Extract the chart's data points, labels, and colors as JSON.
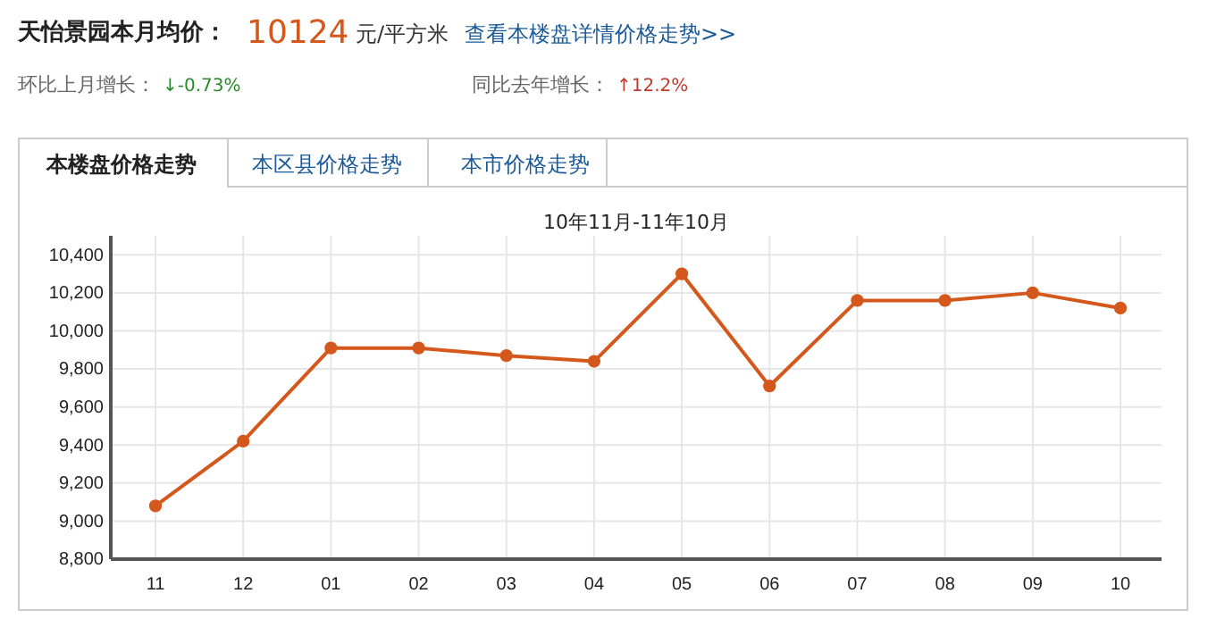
{
  "chart_data": {
    "type": "line",
    "title": "10年11月-11年10月",
    "annotations": [
      "天怡景园本月均价：",
      "10124",
      "元/平方米",
      "查看本楼盘详情价格走势>>",
      "环比上月增长：",
      "↓-0.73%",
      "同比去年增长：",
      "↑12.2%",
      "本楼盘价格走势",
      "本区县价格走势",
      "本市价格走势"
    ],
    "categories": [
      "11",
      "12",
      "01",
      "02",
      "03",
      "04",
      "05",
      "06",
      "07",
      "08",
      "09",
      "10"
    ],
    "series": [
      {
        "color": "#d4581c",
        "values": [
          9080,
          9420,
          9910,
          9910,
          9870,
          9840,
          10300,
          9710,
          10160,
          10160,
          10200,
          10120
        ]
      }
    ],
    "ylim": [
      8800,
      10500
    ],
    "yticks": [
      {
        "value": 8800,
        "label": "8,800"
      },
      {
        "value": 9000,
        "label": "9,000"
      },
      {
        "value": 9200,
        "label": "9,200"
      },
      {
        "value": 9400,
        "label": "9,400"
      },
      {
        "value": 9600,
        "label": "9,600"
      },
      {
        "value": 9800,
        "label": "9,800"
      },
      {
        "value": 10000,
        "label": "10,000"
      },
      {
        "value": 10200,
        "label": "10,200"
      },
      {
        "value": 10400,
        "label": "10,400"
      }
    ],
    "grid": true,
    "marker": "circle",
    "line_style": "solid"
  }
}
